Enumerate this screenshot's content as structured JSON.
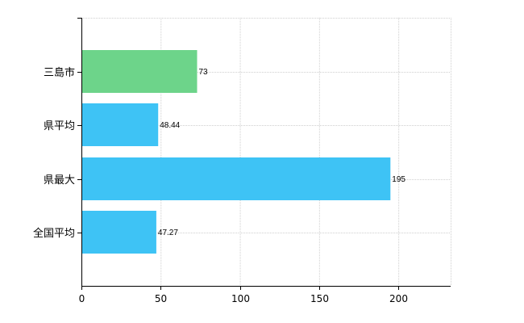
{
  "chart_data": {
    "type": "bar",
    "orientation": "horizontal",
    "categories": [
      "三島市",
      "県平均",
      "県最大",
      "全国平均"
    ],
    "values": [
      73,
      48.44,
      195,
      47.27
    ],
    "value_labels": [
      "73",
      "48.44",
      "195",
      "47.27"
    ],
    "bar_colors": [
      "#6dd48a",
      "#3ec3f5",
      "#3ec3f5",
      "#3ec3f5"
    ],
    "xlim": [
      0,
      233
    ],
    "xticks": [
      0,
      50,
      100,
      150,
      200
    ],
    "grid": true,
    "title": "",
    "xlabel": "",
    "ylabel": ""
  }
}
